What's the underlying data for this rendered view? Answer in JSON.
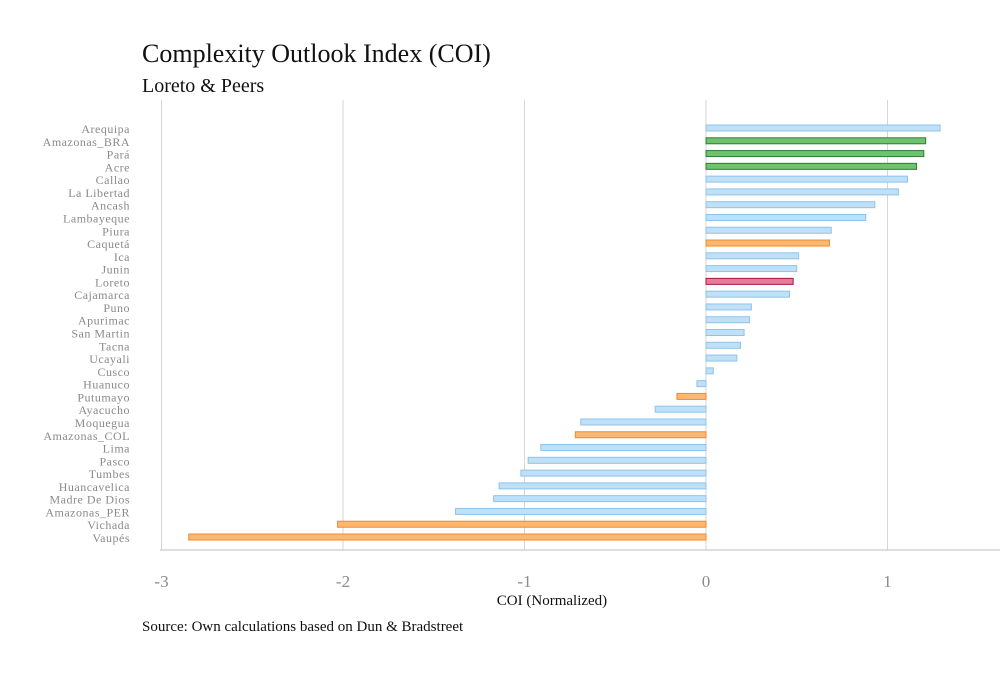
{
  "chart_data": {
    "type": "bar",
    "orientation": "horizontal",
    "title": "Complexity Outlook Index (COI)",
    "subtitle": "Loreto & Peers",
    "xlabel": "COI (Normalized)",
    "ylabel": "",
    "source": "Source: Own calculations based on Dun & Bradstreet",
    "xlim": [
      -3,
      1.3
    ],
    "xticks": [
      -3,
      -2,
      -1,
      0,
      1
    ],
    "grid": true,
    "categories": [
      "Arequipa",
      "Amazonas_BRA",
      "Pará",
      "Acre",
      "Callao",
      "La Libertad",
      "Ancash",
      "Lambayeque",
      "Piura",
      "Caquetá",
      "Ica",
      "Junin",
      "Loreto",
      "Cajamarca",
      "Puno",
      "Apurimac",
      "San Martin",
      "Tacna",
      "Ucayali",
      "Cusco",
      "Huanuco",
      "Putumayo",
      "Ayacucho",
      "Moquegua",
      "Amazonas_COL",
      "Lima",
      "Pasco",
      "Tumbes",
      "Huancavelica",
      "Madre De Dios",
      "Amazonas_PER",
      "Vichada",
      "Vaupés"
    ],
    "values": [
      1.29,
      1.21,
      1.2,
      1.16,
      1.11,
      1.06,
      0.93,
      0.88,
      0.69,
      0.68,
      0.51,
      0.5,
      0.48,
      0.46,
      0.25,
      0.24,
      0.21,
      0.19,
      0.17,
      0.04,
      -0.05,
      -0.16,
      -0.28,
      -0.69,
      -0.72,
      -0.91,
      -0.98,
      -1.02,
      -1.14,
      -1.17,
      -1.38,
      -2.03,
      -2.85
    ],
    "groups": [
      "peru",
      "brazil",
      "brazil",
      "brazil",
      "peru",
      "peru",
      "peru",
      "peru",
      "peru",
      "colombia",
      "peru",
      "peru",
      "loreto",
      "peru",
      "peru",
      "peru",
      "peru",
      "peru",
      "peru",
      "peru",
      "peru",
      "colombia",
      "peru",
      "peru",
      "colombia",
      "peru",
      "peru",
      "peru",
      "peru",
      "peru",
      "peru",
      "colombia",
      "colombia"
    ],
    "colors": {
      "peru": {
        "fill": "#bfe0f7",
        "stroke": "#8ec4ea"
      },
      "brazil": {
        "fill": "#6fc36f",
        "stroke": "#2e7d32"
      },
      "colombia": {
        "fill": "#fbb872",
        "stroke": "#ef8a2b"
      },
      "loreto": {
        "fill": "#e87a9a",
        "stroke": "#a11a3c"
      }
    }
  }
}
